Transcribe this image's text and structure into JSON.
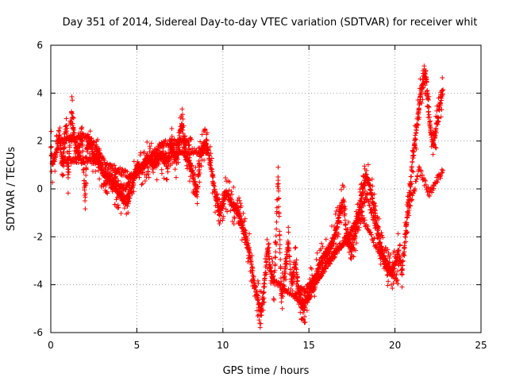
{
  "chart_data": {
    "type": "scatter",
    "title": "Day 351 of 2014, Sidereal Day-to-day VTEC variation (SDTVAR) for receiver whit",
    "xlabel": "GPS time / hours",
    "ylabel": "SDTVAR / TECUs",
    "xlim": [
      0,
      25
    ],
    "ylim": [
      -6,
      6
    ],
    "x_ticks": [
      "0",
      "5",
      "10",
      "15",
      "20",
      "25"
    ],
    "y_ticks": [
      "-6",
      "-4",
      "-2",
      "0",
      "2",
      "4",
      "6"
    ],
    "grid": true,
    "marker": "plus",
    "color": "#ff0000",
    "trend": [
      [
        0.0,
        1.8
      ],
      [
        0.1,
        1.0
      ],
      [
        0.3,
        1.5
      ],
      [
        0.5,
        2.2
      ],
      [
        0.7,
        1.0
      ],
      [
        0.9,
        2.8
      ],
      [
        1.0,
        0.5
      ],
      [
        1.2,
        3.2
      ],
      [
        1.4,
        2.0
      ],
      [
        1.6,
        1.5
      ],
      [
        1.8,
        2.5
      ],
      [
        2.0,
        -0.5
      ],
      [
        2.1,
        1.8
      ],
      [
        2.3,
        2.0
      ],
      [
        2.5,
        1.2
      ],
      [
        2.7,
        1.6
      ],
      [
        3.0,
        0.6
      ],
      [
        3.2,
        0.5
      ],
      [
        3.5,
        0.2
      ],
      [
        3.8,
        0.0
      ],
      [
        4.0,
        -0.2
      ],
      [
        4.3,
        -0.5
      ],
      [
        4.5,
        -0.4
      ],
      [
        4.7,
        0.0
      ],
      [
        5.0,
        1.0
      ],
      [
        5.3,
        0.8
      ],
      [
        5.6,
        1.3
      ],
      [
        6.0,
        1.0
      ],
      [
        6.4,
        1.4
      ],
      [
        6.8,
        1.0
      ],
      [
        7.0,
        1.8
      ],
      [
        7.3,
        1.2
      ],
      [
        7.6,
        2.8
      ],
      [
        7.8,
        1.5
      ],
      [
        8.0,
        1.2
      ],
      [
        8.3,
        0.5
      ],
      [
        8.5,
        -0.2
      ],
      [
        8.7,
        1.5
      ],
      [
        9.0,
        2.0
      ],
      [
        9.3,
        1.0
      ],
      [
        9.5,
        0.0
      ],
      [
        9.8,
        -1.0
      ],
      [
        10.2,
        -0.2
      ],
      [
        10.5,
        -0.6
      ],
      [
        10.8,
        -0.9
      ],
      [
        11.0,
        -1.2
      ],
      [
        11.3,
        -2.0
      ],
      [
        11.5,
        -2.5
      ],
      [
        11.8,
        -3.8
      ],
      [
        12.0,
        -4.5
      ],
      [
        12.2,
        -5.2
      ],
      [
        12.4,
        -4.0
      ],
      [
        12.6,
        -2.5
      ],
      [
        12.8,
        -3.5
      ],
      [
        13.0,
        -4.0
      ],
      [
        13.2,
        0.5
      ],
      [
        13.4,
        -4.5
      ],
      [
        13.6,
        -3.5
      ],
      [
        13.8,
        -2.2
      ],
      [
        14.0,
        -4.0
      ],
      [
        14.2,
        -3.0
      ],
      [
        14.4,
        -4.2
      ],
      [
        14.6,
        -5.0
      ],
      [
        14.8,
        -4.8
      ],
      [
        15.0,
        -4.2
      ],
      [
        15.3,
        -3.8
      ],
      [
        15.6,
        -3.2
      ],
      [
        15.9,
        -2.8
      ],
      [
        16.2,
        -2.5
      ],
      [
        16.5,
        -2.0
      ],
      [
        16.8,
        -1.0
      ],
      [
        17.0,
        -0.5
      ],
      [
        17.2,
        -2.0
      ],
      [
        17.5,
        -2.5
      ],
      [
        17.8,
        -1.5
      ],
      [
        18.0,
        -0.5
      ],
      [
        18.3,
        0.5
      ],
      [
        18.5,
        0.2
      ],
      [
        18.8,
        -0.8
      ],
      [
        19.0,
        -1.8
      ],
      [
        19.2,
        -2.5
      ],
      [
        19.5,
        -3.2
      ],
      [
        19.8,
        -3.5
      ],
      [
        20.0,
        -3.2
      ],
      [
        20.2,
        -2.5
      ],
      [
        20.4,
        -3.5
      ],
      [
        20.6,
        -2.0
      ],
      [
        20.8,
        -0.5
      ],
      [
        21.0,
        1.0
      ],
      [
        21.2,
        2.2
      ],
      [
        21.4,
        3.5
      ],
      [
        21.6,
        4.5
      ],
      [
        21.8,
        4.8
      ],
      [
        22.0,
        3.0
      ],
      [
        22.2,
        1.8
      ],
      [
        22.4,
        2.5
      ],
      [
        22.6,
        3.5
      ],
      [
        22.8,
        4.2
      ]
    ],
    "loops": [
      [
        [
          0.6,
          1.2
        ],
        [
          2.6,
          1.2
        ],
        [
          4.2,
          0.0
        ],
        [
          5.5,
          1.2
        ],
        [
          7.4,
          1.5
        ],
        [
          9.1,
          1.6
        ]
      ],
      [
        [
          0.4,
          2.0
        ],
        [
          2.2,
          2.2
        ],
        [
          3.2,
          1.0
        ],
        [
          4.8,
          0.5
        ],
        [
          6.5,
          1.9
        ],
        [
          8.2,
          2.0
        ]
      ],
      [
        [
          13.1,
          -3.9
        ],
        [
          14.8,
          -4.8
        ],
        [
          16.1,
          -3.0
        ],
        [
          17.2,
          -2.1
        ],
        [
          18.4,
          -0.3
        ],
        [
          19.6,
          -3.6
        ]
      ],
      [
        [
          14.2,
          -4.4
        ],
        [
          15.3,
          -4.0
        ],
        [
          16.7,
          -2.5
        ],
        [
          18.1,
          -1.2
        ],
        [
          19.2,
          -2.8
        ],
        [
          20.2,
          -3.9
        ]
      ],
      [
        [
          20.6,
          -1.5
        ],
        [
          21.4,
          0.8
        ],
        [
          22.0,
          -0.2
        ],
        [
          22.8,
          0.8
        ]
      ]
    ]
  }
}
